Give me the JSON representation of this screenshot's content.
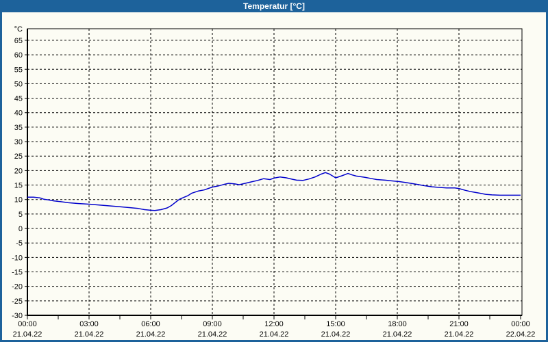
{
  "window": {
    "title": "Temperatur [°C]"
  },
  "colors": {
    "frame": "#1d629b",
    "titlebar_bg": "#1d629b",
    "title_text": "#ffffff",
    "background": "#fcfcf4",
    "plot_border": "#000000",
    "gridline": "#000000",
    "axis_text": "#000000",
    "line": "#0000cc"
  },
  "chart_data": {
    "type": "line",
    "title": "Temperatur [°C]",
    "ylabel": "°C",
    "xlabel": "",
    "x_unit": "hours",
    "xlim": [
      0,
      24
    ],
    "ylim": [
      -30,
      69
    ],
    "grid": "dashed",
    "legend": "none",
    "y_ticks": [
      65,
      60,
      55,
      50,
      45,
      40,
      35,
      30,
      25,
      20,
      15,
      10,
      5,
      0,
      -5,
      -10,
      -15,
      -20,
      -25,
      -30
    ],
    "x_ticks": [
      {
        "hour": 0,
        "time": "00:00",
        "date": "21.04.22"
      },
      {
        "hour": 3,
        "time": "03:00",
        "date": "21.04.22"
      },
      {
        "hour": 6,
        "time": "06:00",
        "date": "21.04.22"
      },
      {
        "hour": 9,
        "time": "09:00",
        "date": "21.04.22"
      },
      {
        "hour": 12,
        "time": "12:00",
        "date": "21.04.22"
      },
      {
        "hour": 15,
        "time": "15:00",
        "date": "21.04.22"
      },
      {
        "hour": 18,
        "time": "18:00",
        "date": "21.04.22"
      },
      {
        "hour": 21,
        "time": "21:00",
        "date": "21.04.22"
      },
      {
        "hour": 24,
        "time": "00:00",
        "date": "22.04.22"
      }
    ],
    "vertical_grid_hours": [
      3,
      6,
      9,
      12,
      15,
      18,
      21
    ],
    "minor_tick_step_hours": 1.5,
    "series": [
      {
        "name": "Temperatur",
        "color": "#0000cc",
        "points": [
          [
            0,
            10.8
          ],
          [
            0.3,
            10.8
          ],
          [
            0.6,
            10.6
          ],
          [
            0.8,
            10.1
          ],
          [
            1.0,
            9.9
          ],
          [
            1.3,
            9.5
          ],
          [
            1.6,
            9.3
          ],
          [
            2.0,
            8.9
          ],
          [
            2.5,
            8.6
          ],
          [
            3.0,
            8.4
          ],
          [
            3.5,
            8.1
          ],
          [
            4.0,
            7.8
          ],
          [
            4.5,
            7.5
          ],
          [
            5.0,
            7.2
          ],
          [
            5.4,
            6.9
          ],
          [
            5.7,
            6.5
          ],
          [
            6.0,
            6.3
          ],
          [
            6.2,
            6.2
          ],
          [
            6.5,
            6.5
          ],
          [
            6.8,
            7.1
          ],
          [
            7.0,
            7.9
          ],
          [
            7.2,
            9.0
          ],
          [
            7.4,
            10.1
          ],
          [
            7.6,
            10.7
          ],
          [
            7.8,
            11.3
          ],
          [
            8.0,
            12.2
          ],
          [
            8.3,
            12.9
          ],
          [
            8.6,
            13.3
          ],
          [
            9.0,
            14.3
          ],
          [
            9.3,
            14.7
          ],
          [
            9.6,
            15.3
          ],
          [
            9.8,
            15.6
          ],
          [
            10.1,
            15.4
          ],
          [
            10.3,
            15.1
          ],
          [
            10.6,
            15.6
          ],
          [
            10.9,
            16.1
          ],
          [
            11.2,
            16.6
          ],
          [
            11.5,
            17.2
          ],
          [
            11.8,
            16.9
          ],
          [
            12.0,
            17.4
          ],
          [
            12.3,
            17.8
          ],
          [
            12.6,
            17.5
          ],
          [
            12.9,
            17.0
          ],
          [
            13.1,
            16.7
          ],
          [
            13.4,
            16.6
          ],
          [
            13.7,
            17.1
          ],
          [
            14.0,
            17.8
          ],
          [
            14.3,
            18.8
          ],
          [
            14.5,
            19.3
          ],
          [
            14.7,
            18.8
          ],
          [
            15.0,
            17.5
          ],
          [
            15.3,
            18.2
          ],
          [
            15.6,
            19.0
          ],
          [
            15.8,
            18.5
          ],
          [
            16.0,
            18.1
          ],
          [
            16.4,
            17.7
          ],
          [
            16.7,
            17.3
          ],
          [
            17.0,
            16.9
          ],
          [
            17.4,
            16.7
          ],
          [
            17.8,
            16.4
          ],
          [
            18.1,
            16.2
          ],
          [
            18.5,
            15.8
          ],
          [
            18.9,
            15.3
          ],
          [
            19.3,
            14.8
          ],
          [
            19.7,
            14.4
          ],
          [
            20.0,
            14.2
          ],
          [
            20.4,
            14.0
          ],
          [
            20.8,
            14.0
          ],
          [
            21.0,
            13.8
          ],
          [
            21.3,
            13.2
          ],
          [
            21.6,
            12.7
          ],
          [
            22.0,
            12.2
          ],
          [
            22.3,
            11.8
          ],
          [
            22.6,
            11.6
          ],
          [
            23.0,
            11.5
          ],
          [
            23.5,
            11.5
          ],
          [
            24.0,
            11.5
          ]
        ]
      }
    ]
  }
}
